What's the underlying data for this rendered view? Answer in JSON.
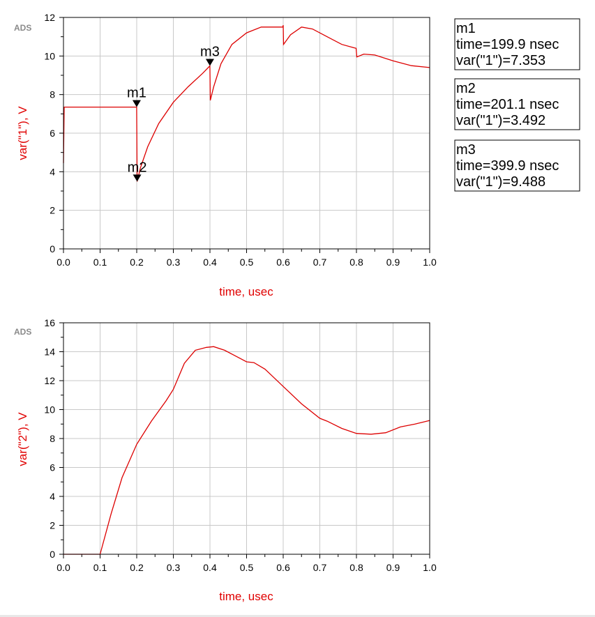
{
  "badge": "ADS",
  "chart_data": [
    {
      "type": "line",
      "xlabel": "time, usec",
      "ylabel": "var(\"1\"), V",
      "xlim": [
        0.0,
        1.0
      ],
      "ylim": [
        0,
        12
      ],
      "xticks": [
        "0.0",
        "0.1",
        "0.2",
        "0.3",
        "0.4",
        "0.5",
        "0.6",
        "0.7",
        "0.8",
        "0.9",
        "1.0"
      ],
      "yticks": [
        "0",
        "2",
        "4",
        "6",
        "8",
        "10",
        "12"
      ],
      "grid": true,
      "series": [
        {
          "x": [
            0.0,
            0.002,
            0.004,
            0.1,
            0.199,
            0.1999,
            0.2011,
            0.21,
            0.23,
            0.26,
            0.3,
            0.34,
            0.38,
            0.3999,
            0.401,
            0.41,
            0.43,
            0.46,
            0.5,
            0.54,
            0.58,
            0.599,
            0.6,
            0.601,
            0.62,
            0.65,
            0.68,
            0.72,
            0.76,
            0.799,
            0.801,
            0.82,
            0.85,
            0.9,
            0.95,
            1.0
          ],
          "y": [
            4.45,
            7.35,
            7.353,
            7.353,
            7.353,
            7.353,
            3.492,
            4.2,
            5.3,
            6.5,
            7.6,
            8.4,
            9.1,
            9.488,
            7.7,
            8.4,
            9.6,
            10.6,
            11.2,
            11.5,
            11.5,
            11.5,
            11.6,
            10.6,
            11.1,
            11.5,
            11.4,
            11.0,
            10.6,
            10.4,
            9.95,
            10.1,
            10.05,
            9.75,
            9.5,
            9.4
          ]
        }
      ],
      "markers": [
        {
          "name": "m1",
          "time": 0.1999,
          "value": 7.353,
          "line1": "time=199.9 nsec",
          "line2": "var(\"1\")=7.353"
        },
        {
          "name": "m2",
          "time": 0.2011,
          "value": 3.492,
          "line1": "time=201.1 nsec",
          "line2": "var(\"1\")=3.492"
        },
        {
          "name": "m3",
          "time": 0.3999,
          "value": 9.488,
          "line1": "time=399.9 nsec",
          "line2": "var(\"1\")=9.488"
        }
      ]
    },
    {
      "type": "line",
      "xlabel": "time, usec",
      "ylabel": "var(\"2\"), V",
      "xlim": [
        0.0,
        1.0
      ],
      "ylim": [
        0,
        16
      ],
      "xticks": [
        "0.0",
        "0.1",
        "0.2",
        "0.3",
        "0.4",
        "0.5",
        "0.6",
        "0.7",
        "0.8",
        "0.9",
        "1.0"
      ],
      "yticks": [
        "0",
        "2",
        "4",
        "6",
        "8",
        "10",
        "12",
        "14",
        "16"
      ],
      "grid": true,
      "series": [
        {
          "x": [
            0.0,
            0.1,
            0.13,
            0.16,
            0.2,
            0.24,
            0.28,
            0.3,
            0.33,
            0.36,
            0.39,
            0.41,
            0.44,
            0.47,
            0.5,
            0.52,
            0.55,
            0.6,
            0.65,
            0.7,
            0.72,
            0.76,
            0.8,
            0.84,
            0.88,
            0.92,
            0.96,
            1.0
          ],
          "y": [
            0,
            0,
            2.8,
            5.3,
            7.6,
            9.2,
            10.6,
            11.4,
            13.2,
            14.1,
            14.3,
            14.35,
            14.1,
            13.7,
            13.3,
            13.25,
            12.8,
            11.6,
            10.4,
            9.4,
            9.2,
            8.7,
            8.35,
            8.3,
            8.4,
            8.8,
            9.0,
            9.25
          ]
        }
      ]
    }
  ]
}
